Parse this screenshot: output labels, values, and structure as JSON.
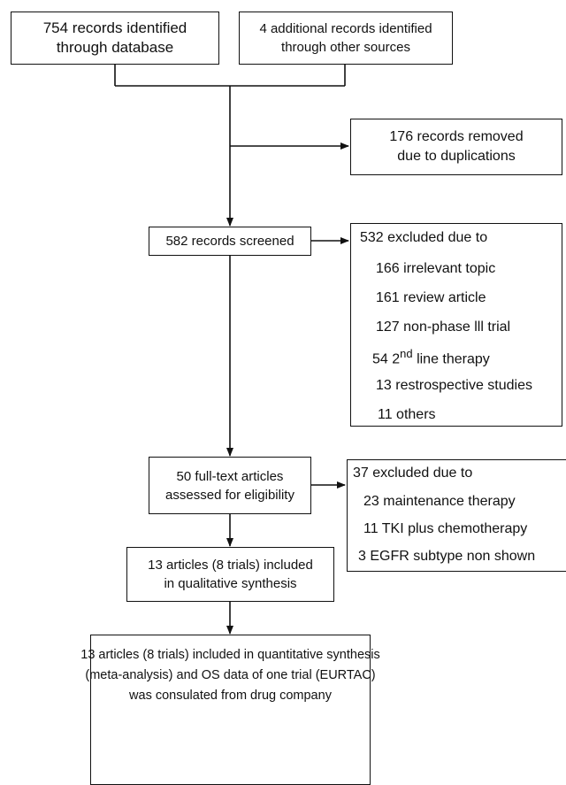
{
  "boxes": {
    "identified_database": {
      "lines": [
        "754 records identified",
        "through database"
      ]
    },
    "identified_other": {
      "lines": [
        "4 additional records identified",
        "through other sources"
      ]
    },
    "duplicates_removed": {
      "lines": [
        "176 records removed",
        "due to duplications"
      ]
    },
    "screened": {
      "lines": [
        "582 records screened"
      ]
    },
    "screen_excluded": {
      "heading": "532 excluded due to",
      "items": [
        "166 irrelevant topic",
        "161 review article",
        "127 non-phase lll trial",
        "line therapy",
        "13 restrospective studies",
        "11 others"
      ],
      "second_line_prefix": "54 2",
      "second_line_superscript": "nd"
    },
    "full_text": {
      "lines": [
        "50 full-text articles",
        "assessed for eligibility"
      ]
    },
    "full_text_excluded": {
      "heading": "37 excluded due to",
      "items": [
        "23 maintenance therapy",
        "11 TKI plus chemotherapy",
        "3 EGFR subtype non shown"
      ]
    },
    "qualitative": {
      "lines": [
        "13 articles (8 trials) included",
        "in qualitative synthesis"
      ]
    },
    "quantitative": {
      "lines": [
        "13 articles (8 trials) included in quantitative synthesis",
        "(meta-analysis) and OS data of one trial (EURTAC)",
        "was consulated from drug company"
      ]
    }
  }
}
